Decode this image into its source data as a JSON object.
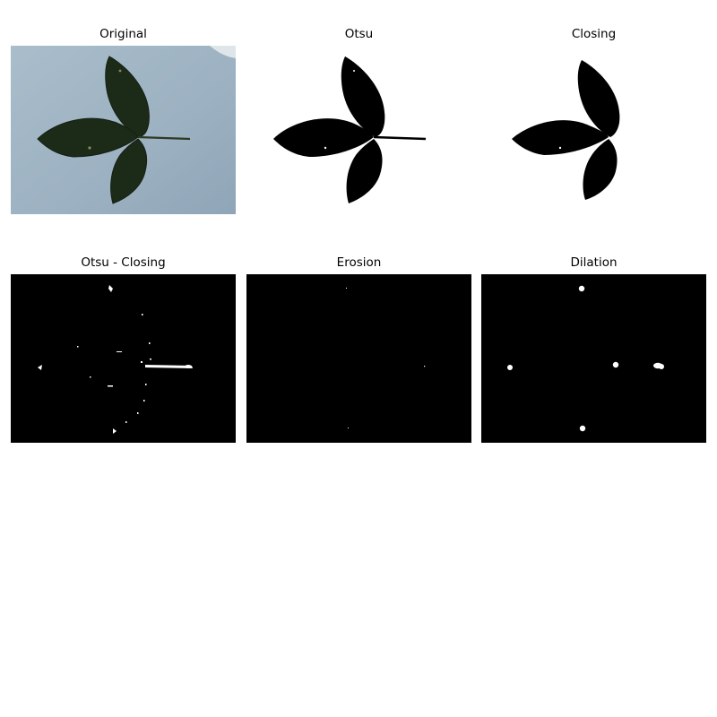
{
  "figure": {
    "panels": [
      {
        "title": "Original",
        "content": "photo of a three-leaf green leaf on a light blue background"
      },
      {
        "title": "Otsu",
        "content": "binary mask: black leaf silhouette on white"
      },
      {
        "title": "Closing",
        "content": "binary mask after closing: black leaf silhouette without stem on white"
      },
      {
        "title": "Otsu - Closing",
        "content": "difference mask: white specks and stem on black"
      },
      {
        "title": "Erosion",
        "content": "eroded difference mask: mostly black with tiny white dots"
      },
      {
        "title": "Dilation",
        "content": "dilated mask: small white blobs on black"
      }
    ]
  },
  "colors": {
    "background": "#ffffff",
    "photo_background": "#9fb4c4",
    "leaf": "#1c2a18",
    "mask_black": "#000000",
    "mask_white": "#ffffff"
  }
}
